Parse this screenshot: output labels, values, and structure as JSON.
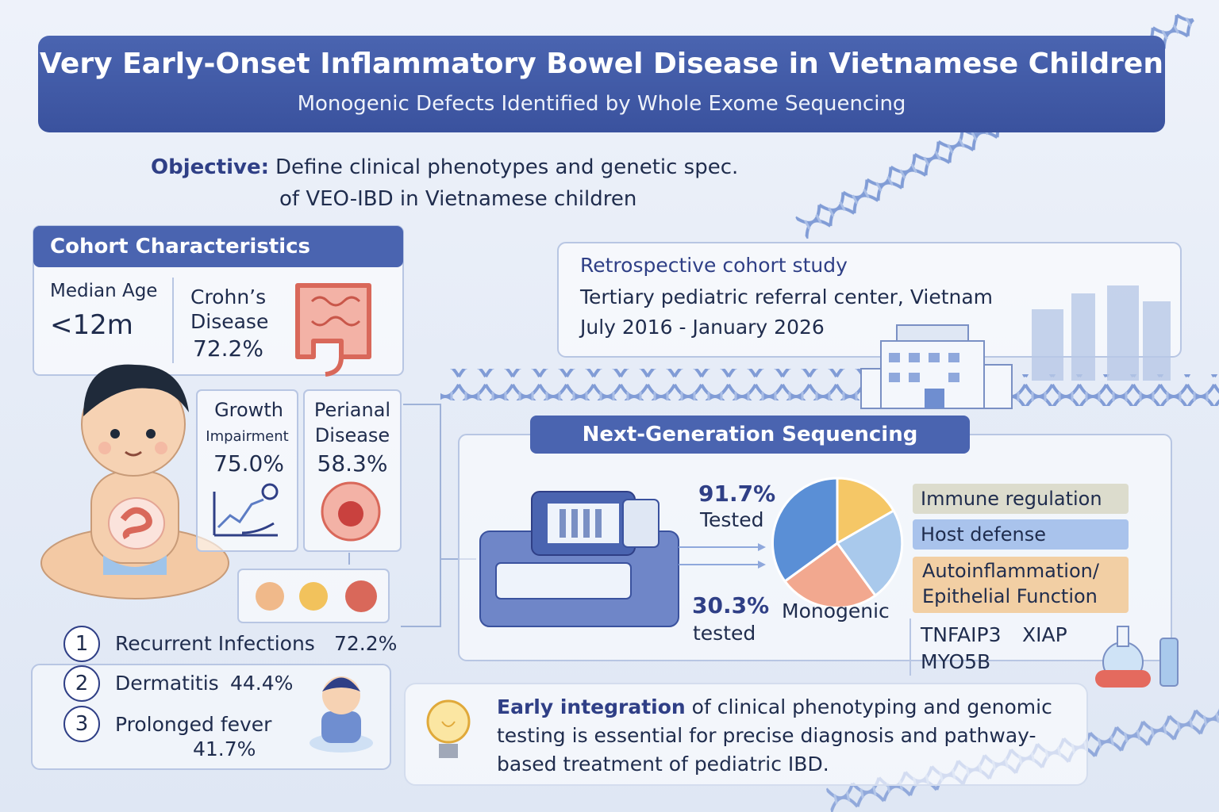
{
  "header": {
    "title": "Very Early-Onset Inflammatory Bowel Disease in Vietnamese Children",
    "subtitle": "Monogenic Defects Identified by Whole Exome Sequencing"
  },
  "objective": {
    "label": "Objective:",
    "lines": [
      "Define clinical phenotypes and genetic spec.",
      "of VEO-IBD in Vietnamese children"
    ]
  },
  "cohort": {
    "title": "Cohort Characteristics",
    "median_age": {
      "label": "Median Age",
      "value": "<12m"
    },
    "crohns": {
      "label_lines": [
        "Crohn’s",
        "Disease"
      ],
      "value": "72.2%"
    },
    "growth": {
      "label_lines": [
        "Growth",
        "Impairment"
      ],
      "value": "75.0%"
    },
    "perianal": {
      "label_lines": [
        "Perianal",
        "Disease"
      ],
      "value": "58.3%"
    }
  },
  "symptoms": [
    {
      "number": "1",
      "label": "Recurrent Infections",
      "value": "72.2%"
    },
    {
      "number": "2",
      "label": "Dermatitis",
      "value": "44.4%"
    },
    {
      "number": "3",
      "label": "Prolonged fever",
      "value": "41.7%"
    }
  ],
  "study": {
    "lines": [
      "Retrospective cohort study",
      "Tertiary pediatric referral center, Vietnam",
      "July 2016 - January 2026"
    ]
  },
  "ngs": {
    "title": "Next-Generation Sequencing",
    "tested": {
      "value": "91.7%",
      "label": "Tested"
    },
    "monogenic": {
      "value": "30.3%",
      "sub": "tested",
      "label": "Monogenic"
    },
    "pathways": [
      "Immune regulation",
      "Host defense",
      [
        "Autoinflammation/",
        "Epithelial Function"
      ]
    ],
    "genes": [
      "TNFAIP3",
      "XIAP",
      "MYO5B"
    ]
  },
  "conclusion": {
    "emphasis": "Early integration",
    "lines": [
      "of clinical phenotyping and genomic",
      "testing is essential for precise diagnosis and pathway-",
      "based treatment of pediatric IBD."
    ]
  }
}
